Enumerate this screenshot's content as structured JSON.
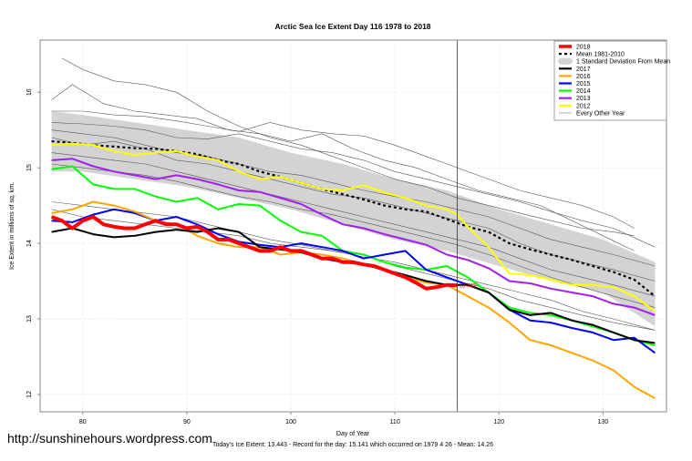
{
  "watermark": "http://sunshinehours.wordpress.com",
  "footer": "Today's Ice Extent: 13.443  - Record for the day: 15.141 which occurred on 1979 4 26  - Mean: 14.26",
  "chart_data": {
    "type": "line",
    "title": "Arctic Sea Ice Extent Day 116 1978 to 2018",
    "xlabel": "Day of Year",
    "ylabel": "Ice Extent in millions of sq. km.",
    "xlim": [
      75.9,
      136.1
    ],
    "ylim": [
      11.77,
      16.69
    ],
    "xticks": [
      80,
      90,
      100,
      110,
      120,
      130
    ],
    "yticks": [
      12,
      13,
      14,
      15,
      16
    ],
    "grid": true,
    "legend_position": "top-right",
    "marker_day": 116,
    "current_label": "13.443",
    "legend": [
      {
        "label": "2018",
        "color": "#ff0000",
        "style": "thick"
      },
      {
        "label": "Mean 1981-2010",
        "color": "#000000",
        "style": "dotted"
      },
      {
        "label": "1 Standard Deviation From Mean",
        "color": "#d3d3d3",
        "style": "band"
      },
      {
        "label": "2017",
        "color": "#000000",
        "style": "solid"
      },
      {
        "label": "2016",
        "color": "#ffa500",
        "style": "solid"
      },
      {
        "label": "2015",
        "color": "#0000ff",
        "style": "solid"
      },
      {
        "label": "2014",
        "color": "#00ff00",
        "style": "solid"
      },
      {
        "label": "2013",
        "color": "#a020f0",
        "style": "solid"
      },
      {
        "label": "2012",
        "color": "#ffff00",
        "style": "solid"
      },
      {
        "label": "Every Other Year",
        "color": "#808080",
        "style": "thin"
      }
    ],
    "band": {
      "x": [
        77,
        80,
        85,
        90,
        95,
        100,
        105,
        110,
        115,
        120,
        125,
        130,
        135
      ],
      "upper": [
        15.75,
        15.7,
        15.6,
        15.5,
        15.4,
        15.2,
        15.05,
        14.85,
        14.7,
        14.45,
        14.25,
        14.05,
        13.75
      ],
      "lower": [
        14.95,
        14.95,
        14.85,
        14.75,
        14.6,
        14.45,
        14.25,
        14.05,
        13.9,
        13.7,
        13.5,
        13.35,
        12.9
      ]
    },
    "mean": {
      "x": [
        77,
        79,
        81,
        83,
        85,
        87,
        89,
        91,
        93,
        95,
        97,
        99,
        101,
        103,
        105,
        107,
        109,
        111,
        113,
        115,
        117,
        119,
        121,
        123,
        125,
        127,
        129,
        131,
        133,
        135
      ],
      "y": [
        15.35,
        15.33,
        15.3,
        15.28,
        15.26,
        15.25,
        15.22,
        15.18,
        15.1,
        15.05,
        14.95,
        14.88,
        14.8,
        14.72,
        14.65,
        14.58,
        14.5,
        14.45,
        14.42,
        14.32,
        14.22,
        14.15,
        14.0,
        13.92,
        13.85,
        13.78,
        13.7,
        13.62,
        13.52,
        13.3
      ]
    },
    "series": [
      {
        "name": "2012",
        "color": "#ffff00",
        "x": [
          77,
          79,
          81,
          83,
          85,
          87,
          89,
          91,
          93,
          95,
          97,
          99,
          101,
          103,
          105,
          107,
          109,
          111,
          113,
          115,
          116,
          117,
          119,
          121,
          123,
          125,
          127,
          129,
          131,
          133,
          135
        ],
        "y": [
          15.3,
          15.32,
          15.3,
          15.22,
          15.17,
          15.2,
          15.22,
          15.15,
          15.1,
          14.95,
          14.85,
          14.88,
          14.8,
          14.72,
          14.7,
          14.77,
          14.67,
          14.6,
          14.5,
          14.45,
          14.38,
          14.22,
          13.95,
          13.6,
          13.58,
          13.52,
          13.45,
          13.45,
          13.42,
          13.3,
          13.1
        ]
      },
      {
        "name": "2013",
        "color": "#a020f0",
        "x": [
          77,
          79,
          81,
          83,
          85,
          87,
          89,
          91,
          93,
          95,
          97,
          99,
          101,
          103,
          105,
          107,
          109,
          111,
          113,
          115,
          117,
          119,
          121,
          123,
          125,
          127,
          129,
          131,
          133,
          135
        ],
        "y": [
          15.1,
          15.12,
          15.02,
          14.95,
          14.9,
          14.85,
          14.9,
          14.85,
          14.78,
          14.7,
          14.68,
          14.6,
          14.52,
          14.38,
          14.25,
          14.2,
          14.12,
          14.05,
          13.98,
          13.85,
          13.78,
          13.67,
          13.5,
          13.47,
          13.4,
          13.35,
          13.3,
          13.2,
          13.15,
          13.05
        ]
      },
      {
        "name": "2014",
        "color": "#00ff00",
        "x": [
          77,
          79,
          81,
          83,
          85,
          87,
          89,
          91,
          93,
          95,
          97,
          99,
          101,
          103,
          105,
          107,
          109,
          111,
          113,
          115,
          117,
          119,
          121,
          123,
          125,
          127,
          129,
          131,
          133,
          135
        ],
        "y": [
          14.98,
          15.02,
          14.78,
          14.72,
          14.72,
          14.62,
          14.55,
          14.6,
          14.45,
          14.52,
          14.5,
          14.3,
          14.15,
          14.1,
          13.9,
          13.85,
          13.75,
          13.68,
          13.65,
          13.7,
          13.55,
          13.35,
          13.15,
          13.08,
          13.05,
          12.98,
          12.9,
          12.82,
          12.72,
          12.65
        ]
      },
      {
        "name": "2015",
        "color": "#0000ff",
        "x": [
          77,
          79,
          81,
          83,
          85,
          87,
          89,
          91,
          93,
          95,
          97,
          99,
          101,
          103,
          105,
          107,
          109,
          111,
          113,
          115,
          117,
          119,
          121,
          123,
          125,
          127,
          129,
          131,
          133,
          135
        ],
        "y": [
          14.3,
          14.28,
          14.38,
          14.45,
          14.4,
          14.3,
          14.35,
          14.25,
          14.12,
          14.02,
          13.98,
          13.95,
          14.0,
          13.95,
          13.9,
          13.8,
          13.85,
          13.9,
          13.65,
          13.55,
          13.45,
          13.35,
          13.12,
          12.98,
          12.95,
          12.88,
          12.82,
          12.72,
          12.75,
          12.55
        ]
      },
      {
        "name": "2016",
        "color": "#ffa500",
        "x": [
          77,
          79,
          81,
          83,
          85,
          87,
          89,
          91,
          93,
          95,
          97,
          99,
          101,
          103,
          105,
          107,
          109,
          111,
          113,
          115,
          117,
          119,
          121,
          123,
          125,
          127,
          129,
          131,
          133,
          135
        ],
        "y": [
          14.4,
          14.45,
          14.55,
          14.5,
          14.42,
          14.3,
          14.25,
          14.1,
          14.0,
          13.95,
          13.95,
          13.85,
          13.88,
          13.85,
          13.8,
          13.72,
          13.65,
          13.55,
          13.48,
          13.45,
          13.3,
          13.15,
          12.95,
          12.72,
          12.65,
          12.55,
          12.45,
          12.32,
          12.1,
          11.95
        ]
      },
      {
        "name": "2017",
        "color": "#000000",
        "x": [
          77,
          79,
          81,
          83,
          85,
          87,
          89,
          91,
          93,
          95,
          97,
          99,
          101,
          103,
          105,
          107,
          109,
          111,
          113,
          115,
          117,
          119,
          121,
          123,
          125,
          127,
          129,
          131,
          133,
          135
        ],
        "y": [
          14.15,
          14.2,
          14.12,
          14.08,
          14.1,
          14.15,
          14.18,
          14.15,
          14.2,
          14.15,
          13.95,
          13.92,
          13.88,
          13.8,
          13.75,
          13.72,
          13.65,
          13.58,
          13.5,
          13.45,
          13.45,
          13.35,
          13.12,
          13.05,
          13.08,
          12.98,
          12.92,
          12.82,
          12.72,
          12.68
        ]
      },
      {
        "name": "2018",
        "color": "#ff0000",
        "width": "thick",
        "x": [
          77,
          78,
          79,
          80,
          81,
          82,
          83,
          84,
          85,
          86,
          87,
          88,
          89,
          90,
          91,
          92,
          93,
          94,
          95,
          96,
          97,
          98,
          99,
          100,
          101,
          102,
          103,
          104,
          105,
          106,
          107,
          108,
          109,
          110,
          111,
          112,
          113,
          114,
          115,
          116
        ],
        "y": [
          14.35,
          14.3,
          14.2,
          14.3,
          14.35,
          14.25,
          14.22,
          14.2,
          14.2,
          14.25,
          14.3,
          14.25,
          14.25,
          14.2,
          14.22,
          14.15,
          14.05,
          14.05,
          14.0,
          13.95,
          13.9,
          13.9,
          13.95,
          13.9,
          13.9,
          13.85,
          13.8,
          13.8,
          13.75,
          13.75,
          13.72,
          13.7,
          13.65,
          13.6,
          13.55,
          13.48,
          13.4,
          13.42,
          13.45,
          13.443
        ]
      }
    ],
    "other_years": [
      {
        "x": [
          78,
          80,
          83,
          86,
          89,
          92,
          95,
          98,
          101,
          104,
          107,
          110,
          113,
          116,
          119,
          122,
          125,
          128,
          131,
          133
        ],
        "y": [
          16.45,
          16.3,
          16.15,
          16.1,
          16.0,
          15.75,
          15.55,
          15.4,
          15.3,
          15.15,
          15.0,
          14.85,
          14.75,
          14.6,
          14.5,
          14.4,
          14.3,
          14.2,
          14.15,
          14.1
        ]
      },
      {
        "x": [
          77,
          79,
          82,
          85,
          88,
          91,
          94,
          97,
          100,
          103,
          106,
          109,
          112,
          115,
          118,
          121,
          124,
          127,
          130,
          133
        ],
        "y": [
          15.9,
          16.1,
          15.85,
          15.75,
          15.7,
          15.65,
          15.5,
          15.45,
          15.35,
          15.45,
          15.25,
          15.1,
          15.0,
          14.85,
          14.7,
          14.6,
          14.5,
          14.3,
          14.1,
          13.9
        ]
      },
      {
        "x": [
          77,
          80,
          83,
          86,
          89,
          92,
          95,
          98,
          101,
          104,
          107,
          110,
          113,
          116,
          119,
          122,
          125,
          128,
          131,
          133
        ],
        "y": [
          15.75,
          15.75,
          15.7,
          15.68,
          15.62,
          15.55,
          15.48,
          15.6,
          15.5,
          15.45,
          15.42,
          15.3,
          15.15,
          15.0,
          14.85,
          14.7,
          14.6,
          14.5,
          14.35,
          14.2
        ]
      },
      {
        "x": [
          77,
          80,
          83,
          86,
          89,
          92,
          95,
          98,
          101,
          104,
          107,
          110,
          113,
          116,
          119,
          122,
          125,
          128,
          131,
          135
        ],
        "y": [
          15.6,
          15.58,
          15.55,
          15.5,
          15.4,
          15.38,
          15.45,
          15.35,
          15.25,
          15.2,
          15.1,
          14.95,
          14.85,
          14.75,
          14.65,
          14.55,
          14.42,
          14.3,
          14.2,
          13.95
        ]
      },
      {
        "x": [
          77,
          80,
          83,
          86,
          89,
          92,
          95,
          98,
          101,
          104,
          107,
          110,
          113,
          116,
          119,
          122,
          125,
          128,
          131,
          135
        ],
        "y": [
          15.5,
          15.45,
          15.4,
          15.3,
          15.2,
          15.15,
          15.05,
          14.95,
          14.9,
          14.8,
          14.7,
          14.62,
          14.55,
          14.45,
          14.35,
          14.2,
          14.05,
          13.95,
          13.85,
          13.7
        ]
      },
      {
        "x": [
          77,
          80,
          83,
          86,
          89,
          92,
          95,
          98,
          101,
          104,
          107,
          110,
          113,
          116,
          119,
          122,
          125,
          128,
          131,
          135
        ],
        "y": [
          15.4,
          15.3,
          15.35,
          15.25,
          15.1,
          15.05,
          14.95,
          14.85,
          14.75,
          14.65,
          14.6,
          14.5,
          14.4,
          14.3,
          14.2,
          14.0,
          13.85,
          13.75,
          13.65,
          13.5
        ]
      },
      {
        "x": [
          77,
          80,
          83,
          86,
          89,
          92,
          95,
          98,
          101,
          104,
          107,
          110,
          113,
          116,
          119,
          122,
          125,
          128,
          131,
          135
        ],
        "y": [
          15.2,
          15.15,
          15.1,
          15.05,
          14.95,
          14.85,
          14.75,
          14.65,
          14.55,
          14.45,
          14.35,
          14.25,
          14.15,
          14.05,
          13.95,
          13.8,
          13.65,
          13.55,
          13.45,
          13.3
        ]
      },
      {
        "x": [
          77,
          80,
          83,
          86,
          89,
          92,
          95,
          98,
          101,
          104,
          107,
          110,
          113,
          116,
          119,
          122,
          125,
          128,
          131,
          135
        ],
        "y": [
          15.05,
          15.0,
          14.95,
          14.9,
          14.82,
          14.72,
          14.62,
          14.55,
          14.45,
          14.38,
          14.28,
          14.18,
          14.08,
          13.98,
          13.85,
          13.7,
          13.55,
          13.42,
          13.3,
          13.15
        ]
      },
      {
        "x": [
          77,
          80,
          83,
          86,
          89,
          92,
          95,
          98,
          101,
          104,
          107,
          110,
          113,
          116,
          119,
          122,
          125,
          128,
          131,
          135
        ],
        "y": [
          14.55,
          14.5,
          14.45,
          14.4,
          14.35,
          14.25,
          14.15,
          14.05,
          13.98,
          13.9,
          13.82,
          13.75,
          13.65,
          13.55,
          13.45,
          13.35,
          13.25,
          13.1,
          13.0,
          12.85
        ]
      },
      {
        "x": [
          77,
          80,
          83,
          86,
          89,
          92,
          95,
          98,
          101,
          104,
          107,
          110,
          113,
          116,
          119,
          122,
          125,
          128,
          131,
          135
        ],
        "y": [
          14.45,
          14.35,
          14.3,
          14.25,
          14.2,
          14.15,
          14.1,
          14.0,
          13.95,
          13.9,
          13.85,
          13.7,
          13.6,
          13.5,
          13.4,
          13.25,
          13.15,
          13.05,
          12.95,
          12.85
        ]
      }
    ]
  }
}
